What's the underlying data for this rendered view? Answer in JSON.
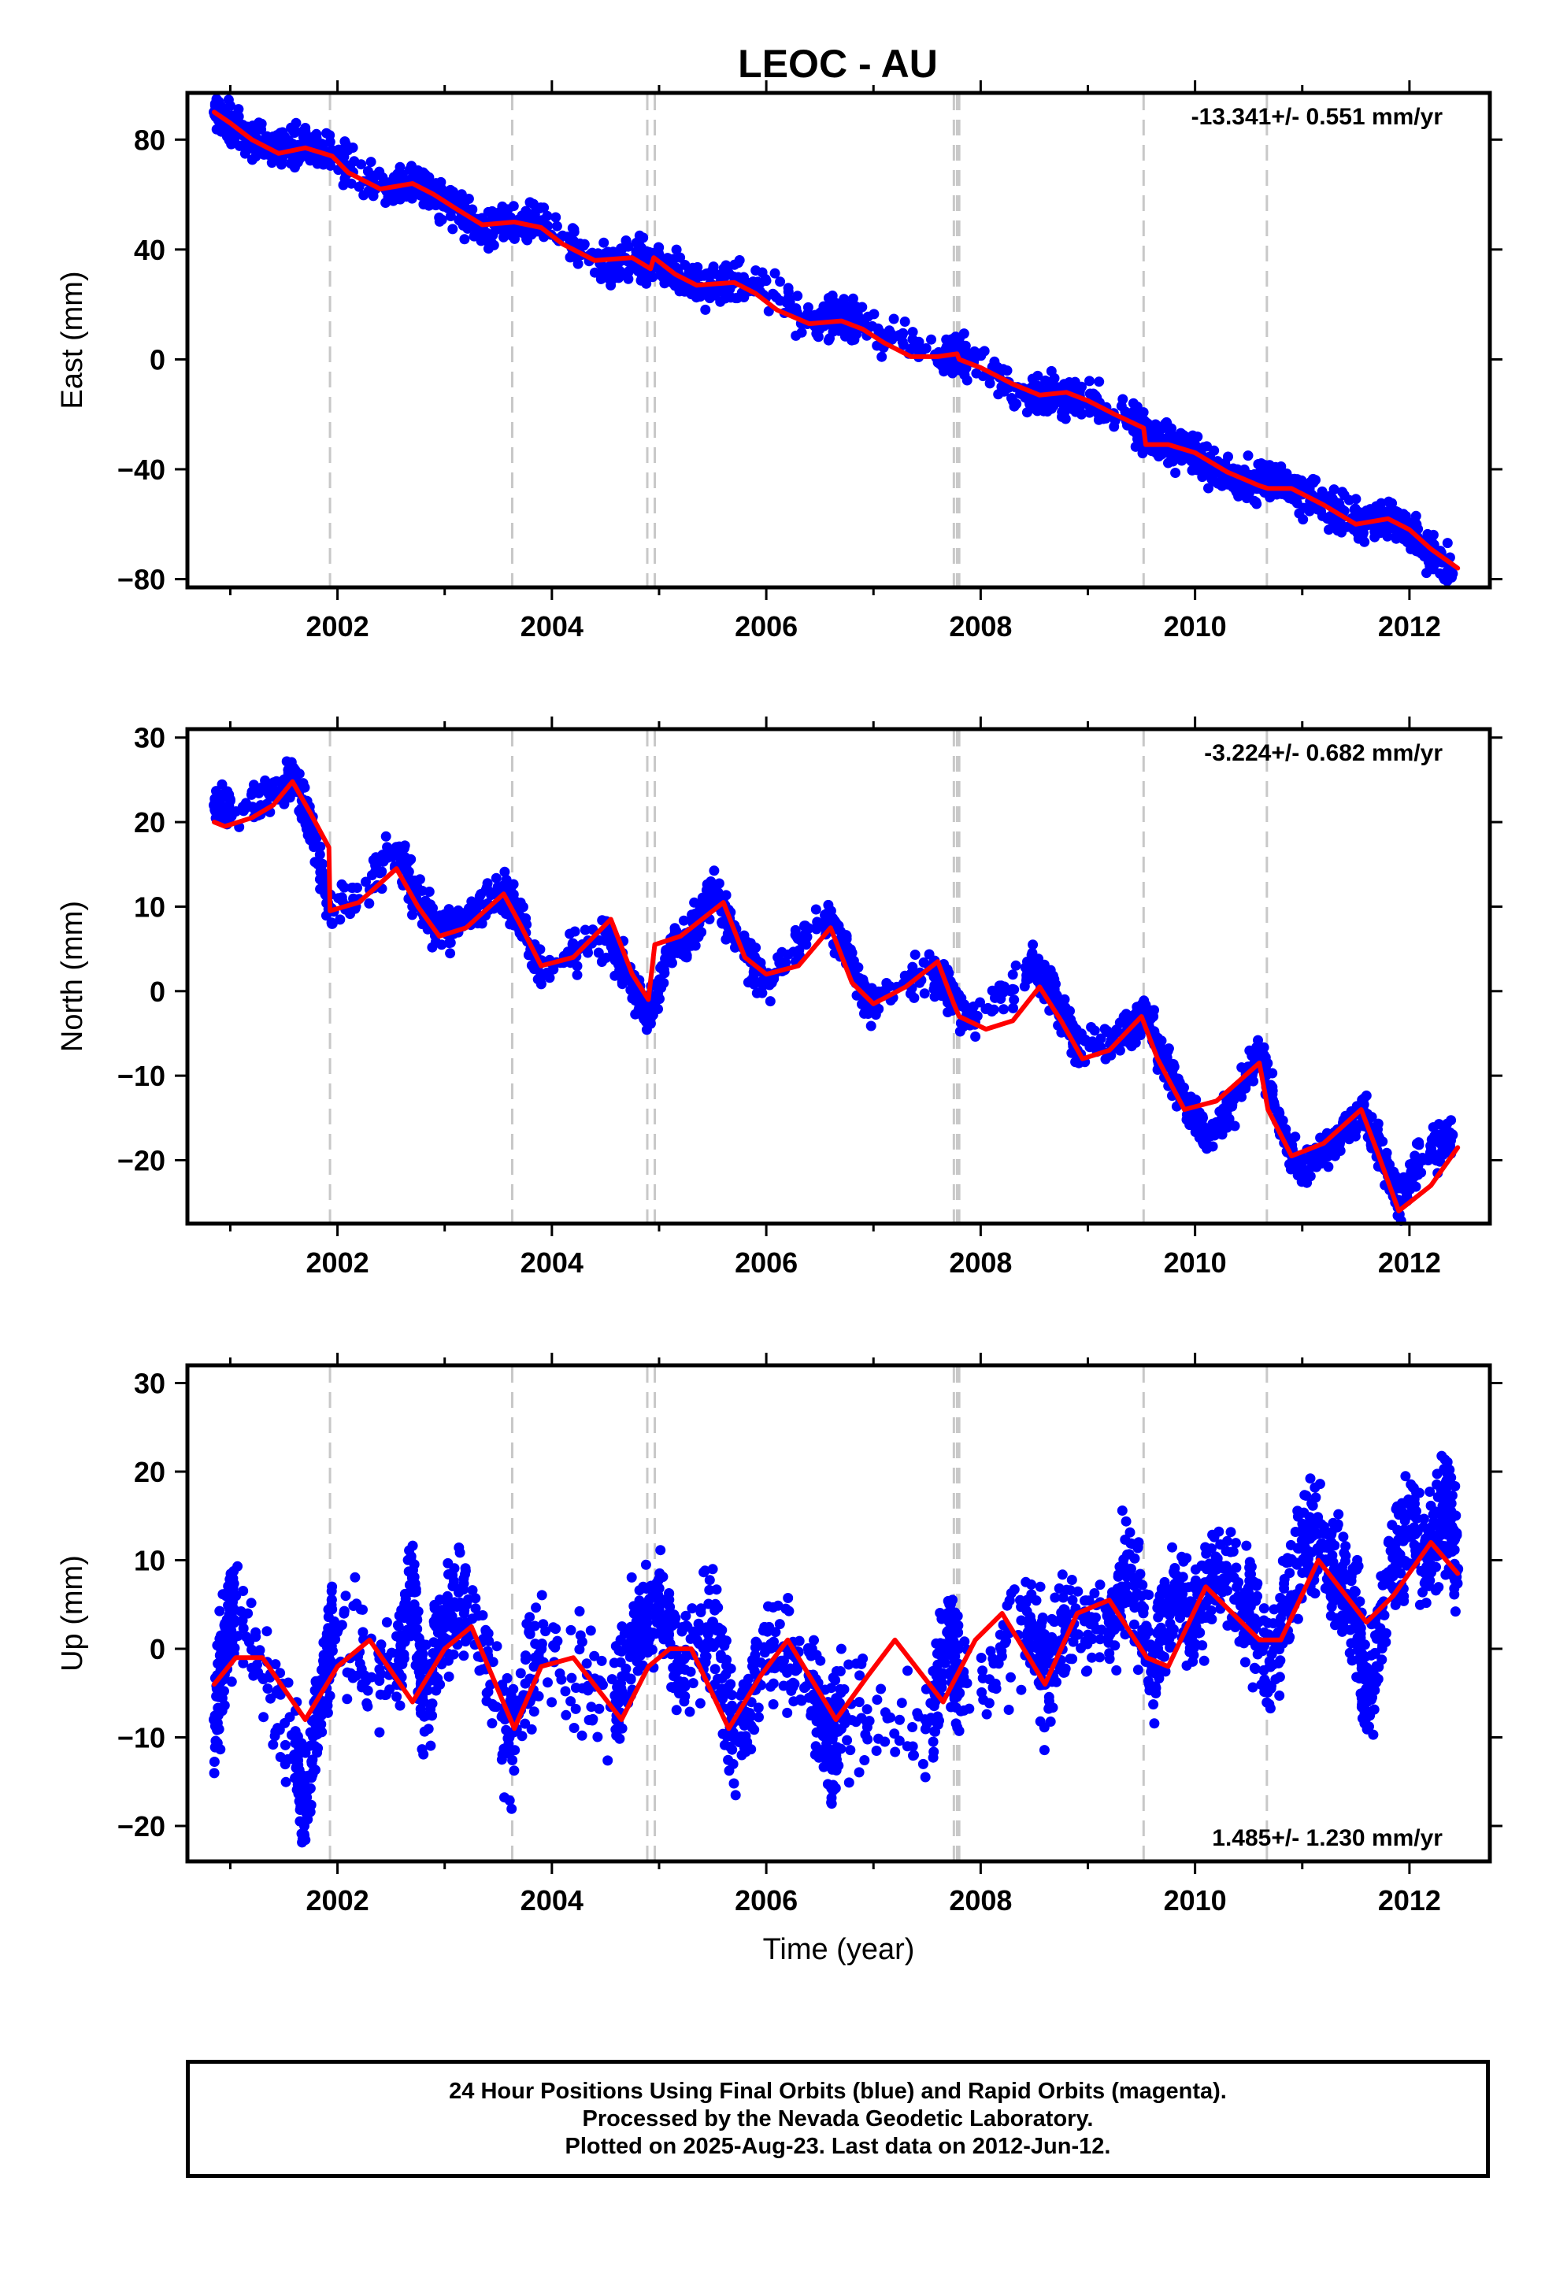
{
  "chart_data": [
    {
      "type": "scatter",
      "title": "LEOC - AU",
      "ylabel": "East (mm)",
      "xlabel": "",
      "rate_text": "-13.341+/- 0.551 mm/yr",
      "rate_position": "top-right",
      "xlim": [
        2000.6,
        2012.75
      ],
      "ylim": [
        -83,
        97
      ],
      "x_ticks": [
        2002,
        2004,
        2006,
        2008,
        2010,
        2012
      ],
      "y_ticks": [
        80,
        40,
        0,
        -40,
        -80
      ],
      "y_tick_labels": [
        "80",
        "40",
        "0",
        "−40",
        "−80"
      ],
      "model_fit": {
        "color": "#ff0000",
        "x": [
          2000.85,
          2001.0,
          2001.2,
          2001.45,
          2001.7,
          2001.95,
          2002.1,
          2002.4,
          2002.7,
          2002.9,
          2003.1,
          2003.35,
          2003.65,
          2003.9,
          2004.1,
          2004.4,
          2004.75,
          2004.92,
          2004.95,
          2005.15,
          2005.35,
          2005.7,
          2005.9,
          2006.1,
          2006.4,
          2006.7,
          2006.9,
          2007.1,
          2007.35,
          2007.6,
          2007.78,
          2007.8,
          2008.0,
          2008.3,
          2008.55,
          2008.8,
          2009.0,
          2009.25,
          2009.52,
          2009.54,
          2009.75,
          2010.0,
          2010.3,
          2010.6,
          2010.68,
          2010.9,
          2011.2,
          2011.5,
          2011.8,
          2012.0,
          2012.2,
          2012.45
        ],
        "y": [
          90,
          86,
          80,
          75,
          77,
          74,
          68,
          62,
          64,
          60,
          55,
          49,
          50,
          48,
          42,
          36,
          37,
          33,
          37,
          31,
          27,
          28,
          24,
          18,
          13,
          14,
          11,
          6,
          1,
          1,
          2,
          0,
          -3,
          -9,
          -13,
          -12,
          -15,
          -20,
          -25,
          -31,
          -31,
          -34,
          -41,
          -46,
          -47,
          -47,
          -53,
          -60,
          -58,
          -62,
          -69,
          -76
        ]
      },
      "observations": {
        "color": "#0000ff",
        "x": [
          2000.85,
          2001.0,
          2001.2,
          2001.45,
          2001.7,
          2001.95,
          2002.45,
          2002.7,
          2002.9,
          2003.1,
          2003.35,
          2003.65,
          2003.9,
          2004.45,
          2004.75,
          2004.95,
          2005.2,
          2005.5,
          2005.8,
          2006.45,
          2006.7,
          2006.9,
          2007.6,
          2007.78,
          2007.9,
          2008.45,
          2008.7,
          2008.9,
          2009.4,
          2009.52,
          2009.65,
          2009.85,
          2010.05,
          2010.35,
          2010.55,
          2010.75,
          2011.0,
          2011.3,
          2011.6,
          2011.8,
          2012.0,
          2012.2,
          2012.4
        ],
        "y": [
          90,
          86,
          80,
          76,
          78,
          76,
          62,
          66,
          60,
          55,
          48,
          50,
          50,
          35,
          36,
          36,
          30,
          26,
          28,
          14,
          15,
          13,
          1,
          3,
          0,
          -14,
          -12,
          -14,
          -22,
          -25,
          -30,
          -32,
          -36,
          -43,
          -44,
          -45,
          -49,
          -56,
          -59,
          -57,
          -63,
          -70,
          -78
        ]
      },
      "event_lines_x": [
        2001.93,
        2003.63,
        2004.89,
        2004.96,
        2007.75,
        2007.78,
        2007.8,
        2009.52,
        2010.67
      ]
    },
    {
      "type": "scatter",
      "title": "",
      "ylabel": "North (mm)",
      "xlabel": "",
      "rate_text": "-3.224+/- 0.682 mm/yr",
      "rate_position": "top-right",
      "xlim": [
        2000.6,
        2012.75
      ],
      "ylim": [
        -27.5,
        31
      ],
      "x_ticks": [
        2002,
        2004,
        2006,
        2008,
        2010,
        2012
      ],
      "y_ticks": [
        30,
        20,
        10,
        0,
        -10,
        -20
      ],
      "y_tick_labels": [
        "30",
        "20",
        "10",
        "0",
        "−10",
        "−20"
      ],
      "model_fit": {
        "color": "#ff0000",
        "x": [
          2000.85,
          2000.95,
          2001.2,
          2001.4,
          2001.58,
          2001.75,
          2001.92,
          2001.93,
          2002.2,
          2002.55,
          2002.75,
          2002.95,
          2003.2,
          2003.55,
          2003.7,
          2003.9,
          2004.2,
          2004.55,
          2004.75,
          2004.9,
          2004.96,
          2005.2,
          2005.6,
          2005.8,
          2006.0,
          2006.3,
          2006.6,
          2006.8,
          2007.0,
          2007.3,
          2007.6,
          2007.75,
          2007.8,
          2008.05,
          2008.3,
          2008.55,
          2008.75,
          2008.95,
          2009.2,
          2009.5,
          2009.65,
          2009.9,
          2010.2,
          2010.6,
          2010.68,
          2010.9,
          2011.2,
          2011.55,
          2011.7,
          2011.9,
          2012.2,
          2012.45
        ],
        "y": [
          20,
          19.5,
          20.5,
          22,
          24.8,
          21,
          17,
          9.5,
          10.5,
          14.5,
          10,
          6.5,
          7.5,
          11.5,
          8,
          3,
          4,
          8.5,
          2,
          -1,
          5.5,
          6.5,
          10.5,
          4,
          2,
          3,
          7.5,
          1,
          -1.5,
          0.5,
          3.5,
          -1.5,
          -3,
          -4.5,
          -3.5,
          0.5,
          -3.5,
          -8,
          -7,
          -3,
          -8,
          -14,
          -13,
          -8.5,
          -14,
          -19.5,
          -18,
          -14,
          -19,
          -26,
          -23,
          -18.5
        ]
      },
      "observations": {
        "color": "#0000ff",
        "x": [
          2000.85,
          2001.0,
          2001.5,
          2001.6,
          2001.75,
          2001.95,
          2002.55,
          2002.7,
          2002.95,
          2003.2,
          2003.55,
          2003.65,
          2003.9,
          2004.5,
          2004.75,
          2004.9,
          2005.1,
          2005.3,
          2005.5,
          2005.7,
          2006.0,
          2006.55,
          2006.75,
          2006.95,
          2007.55,
          2007.7,
          2007.9,
          2008.5,
          2008.7,
          2008.9,
          2009.4,
          2009.52,
          2009.7,
          2009.9,
          2010.1,
          2010.4,
          2010.6,
          2010.8,
          2011.0,
          2011.3,
          2011.55,
          2011.7,
          2011.9,
          2012.1,
          2012.4
        ],
        "y": [
          22,
          21,
          24,
          25,
          20,
          8,
          17,
          12,
          7,
          9,
          12,
          10,
          2,
          7,
          1,
          -3,
          5,
          7,
          12,
          7,
          1,
          9,
          5,
          -2,
          3,
          0,
          -4,
          3,
          -1,
          -7,
          -5,
          -2,
          -8,
          -13,
          -18,
          -12,
          -7,
          -16,
          -22,
          -18,
          -14,
          -18,
          -25,
          -20,
          -17
        ]
      },
      "event_lines_x": [
        2001.93,
        2003.63,
        2004.89,
        2004.96,
        2007.75,
        2007.78,
        2007.8,
        2009.52,
        2010.67
      ]
    },
    {
      "type": "scatter",
      "title": "",
      "ylabel": "Up (mm)",
      "xlabel": "Time (year)",
      "rate_text": "1.485+/- 1.230 mm/yr",
      "rate_position": "bottom-right",
      "xlim": [
        2000.6,
        2012.75
      ],
      "ylim": [
        -24,
        32
      ],
      "x_ticks": [
        2002,
        2004,
        2006,
        2008,
        2010,
        2012
      ],
      "y_ticks": [
        30,
        20,
        10,
        0,
        -10,
        -20
      ],
      "y_tick_labels": [
        "30",
        "20",
        "10",
        "0",
        "−10",
        "−20"
      ],
      "model_fit": {
        "color": "#ff0000",
        "x": [
          2000.85,
          2001.05,
          2001.3,
          2001.7,
          2002.0,
          2002.3,
          2002.7,
          2003.0,
          2003.25,
          2003.65,
          2003.9,
          2004.2,
          2004.65,
          2004.9,
          2005.1,
          2005.3,
          2005.65,
          2005.95,
          2006.2,
          2006.65,
          2006.95,
          2007.2,
          2007.65,
          2007.95,
          2008.2,
          2008.6,
          2008.9,
          2009.2,
          2009.55,
          2009.75,
          2010.1,
          2010.6,
          2010.8,
          2011.15,
          2011.6,
          2011.85,
          2012.2,
          2012.45
        ],
        "y": [
          -4,
          -1,
          -1,
          -8,
          -2,
          1,
          -6,
          0,
          2.5,
          -9,
          -2,
          -1,
          -8,
          -2,
          0,
          0,
          -9,
          -3,
          1,
          -8,
          -3,
          1,
          -6,
          1,
          4,
          -4,
          4,
          5.5,
          -1,
          -2,
          7,
          1,
          1,
          10,
          3,
          6,
          12,
          8.5
        ]
      },
      "observations": {
        "color": "#0000ff",
        "x": [
          2000.85,
          2000.95,
          2001.05,
          2001.6,
          2001.7,
          2001.85,
          2001.95,
          2002.55,
          2002.7,
          2002.8,
          2003.0,
          2003.2,
          2003.6,
          2003.9,
          2004.6,
          2004.8,
          2005.0,
          2005.2,
          2005.5,
          2005.7,
          2006.0,
          2006.4,
          2006.6,
          2006.7,
          2007.55,
          2007.7,
          2007.8,
          2008.45,
          2008.6,
          2008.8,
          2009.2,
          2009.4,
          2009.6,
          2009.8,
          2010.0,
          2010.2,
          2010.5,
          2010.7,
          2010.9,
          2011.1,
          2011.3,
          2011.5,
          2011.6,
          2011.8,
          2012.0,
          2012.2,
          2012.35,
          2012.45
        ],
        "y": [
          -8,
          0,
          6,
          -12,
          -18,
          -4,
          2,
          -3,
          8,
          -6,
          3,
          5,
          -10,
          0,
          -6,
          2,
          5,
          -2,
          3,
          -10,
          0,
          -3,
          -12,
          -7,
          -8,
          2,
          -5,
          3,
          -4,
          2,
          3,
          9,
          -2,
          6,
          3,
          9,
          4,
          -2,
          6,
          14,
          9,
          5,
          -6,
          8,
          13,
          11,
          17,
          9
        ]
      },
      "event_lines_x": [
        2001.93,
        2003.63,
        2004.89,
        2004.96,
        2007.75,
        2007.78,
        2007.8,
        2009.52,
        2010.67
      ]
    }
  ],
  "footer": {
    "line1": "24 Hour Positions Using Final Orbits (blue) and Rapid Orbits (magenta).",
    "line2": "Processed by the Nevada Geodetic Laboratory.",
    "line3": "Plotted on 2025-Aug-23. Last data on 2012-Jun-12."
  }
}
